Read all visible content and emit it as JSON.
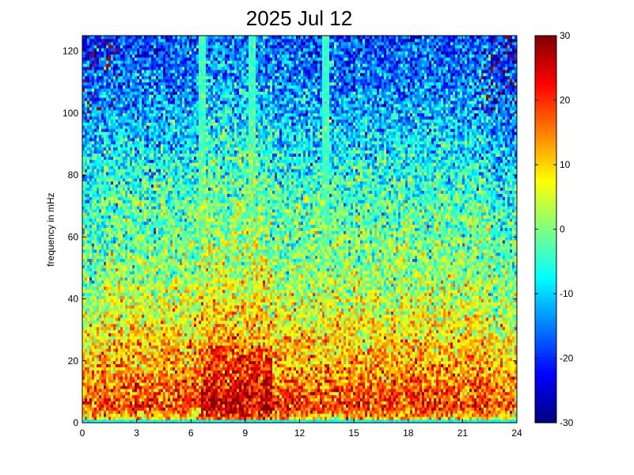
{
  "chart_data": {
    "type": "heatmap",
    "title": "2025 Jul 12",
    "xlabel": "",
    "ylabel": "frequency in mHz",
    "xlim": [
      0,
      24
    ],
    "ylim": [
      0,
      125
    ],
    "x_ticks": [
      0,
      3,
      6,
      9,
      12,
      15,
      18,
      21,
      24
    ],
    "x_tick_labels": [
      "0",
      "3",
      "6",
      "9",
      "12",
      "15",
      "18",
      "21",
      "24"
    ],
    "y_ticks": [
      0,
      20,
      40,
      60,
      80,
      100,
      120
    ],
    "y_tick_labels": [
      "0",
      "20",
      "40",
      "60",
      "80",
      "100",
      "120"
    ],
    "colorbar": {
      "range": [
        -30,
        30
      ],
      "ticks": [
        -30,
        -20,
        -10,
        0,
        10,
        20,
        30
      ],
      "tick_labels": [
        "-30",
        "-20",
        "-10",
        "0",
        "10",
        "20",
        "30"
      ],
      "colormap": "jet"
    },
    "approx_power_profile_by_frequency": {
      "frequency_mHz": [
        0,
        1.5,
        5,
        10,
        20,
        30,
        40,
        50,
        60,
        70,
        80,
        90,
        100,
        110,
        125
      ],
      "power": [
        -8,
        10,
        20,
        17,
        12,
        8,
        4,
        1,
        -1,
        -3,
        -6,
        -9,
        -12,
        -15,
        -18
      ]
    },
    "vertical_features_hours": [
      6.6,
      9.4,
      13.4
    ],
    "hot_region_hours": [
      6.5,
      10.5
    ],
    "quiet_region_hours": [
      22.5,
      24
    ]
  }
}
